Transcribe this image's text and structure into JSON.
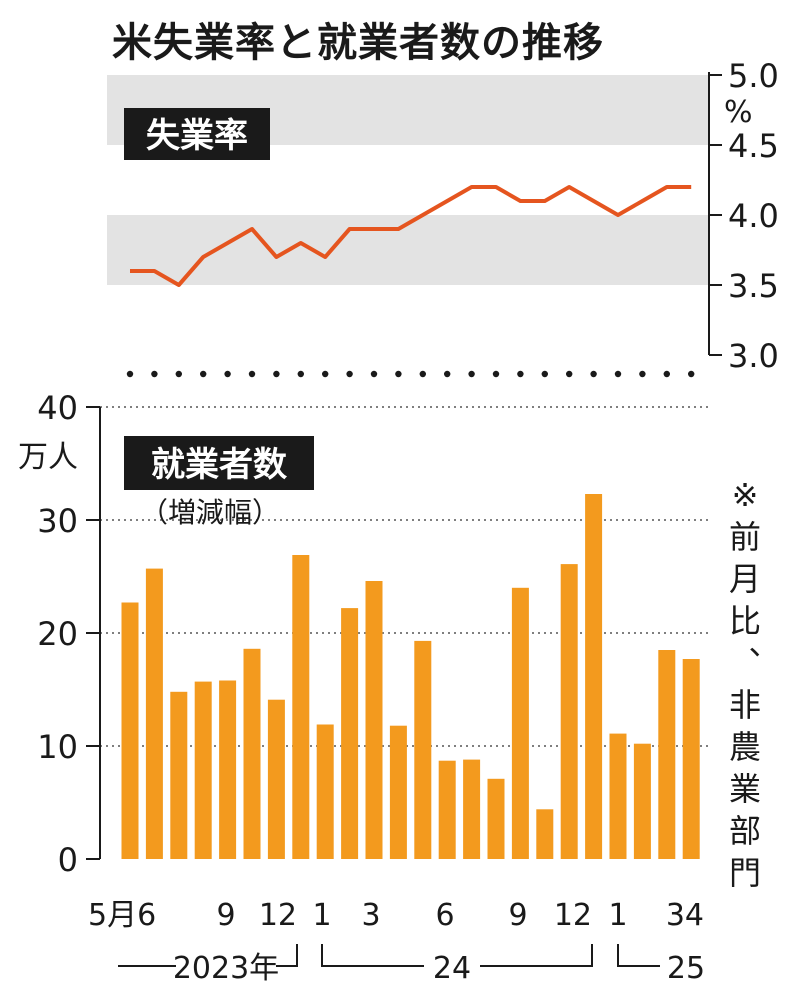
{
  "title": "米失業率と就業者数の推移",
  "colors": {
    "line": "#e5551f",
    "bar": "#f39a1e",
    "band": "#e3e3e3",
    "ink": "#1a1a1a"
  },
  "chart_data": [
    {
      "type": "line",
      "title": "失業率",
      "unit": "%",
      "axis_side": "right",
      "ylim": [
        3.0,
        5.0
      ],
      "yticks": [
        "5.0",
        "4.5",
        "4.0",
        "3.5",
        "3.0"
      ],
      "bands": [
        [
          4.5,
          5.0
        ],
        [
          3.5,
          4.0
        ]
      ],
      "x": [
        "2023-05",
        "2023-06",
        "2023-07",
        "2023-08",
        "2023-09",
        "2023-10",
        "2023-11",
        "2023-12",
        "2024-01",
        "2024-02",
        "2024-03",
        "2024-04",
        "2024-05",
        "2024-06",
        "2024-07",
        "2024-08",
        "2024-09",
        "2024-10",
        "2024-11",
        "2024-12",
        "2025-01",
        "2025-02",
        "2025-03",
        "2025-04"
      ],
      "values": [
        3.6,
        3.6,
        3.5,
        3.7,
        3.8,
        3.9,
        3.7,
        3.8,
        3.7,
        3.9,
        3.9,
        3.9,
        4.0,
        4.1,
        4.2,
        4.2,
        4.1,
        4.1,
        4.2,
        4.1,
        4.0,
        4.1,
        4.2,
        4.2
      ]
    },
    {
      "type": "bar",
      "title": "就業者数",
      "subtitle": "（増減幅）",
      "unit": "万人",
      "axis_side": "left",
      "ylim": [
        0,
        40
      ],
      "yticks": [
        "40",
        "30",
        "20",
        "10",
        "0"
      ],
      "x": [
        "2023-05",
        "2023-06",
        "2023-07",
        "2023-08",
        "2023-09",
        "2023-10",
        "2023-11",
        "2023-12",
        "2024-01",
        "2024-02",
        "2024-03",
        "2024-04",
        "2024-05",
        "2024-06",
        "2024-07",
        "2024-08",
        "2024-09",
        "2024-10",
        "2024-11",
        "2024-12",
        "2025-01",
        "2025-02",
        "2025-03",
        "2025-04"
      ],
      "values": [
        22.7,
        25.7,
        14.8,
        15.7,
        15.8,
        18.6,
        14.1,
        26.9,
        11.9,
        22.2,
        24.6,
        11.8,
        19.3,
        8.7,
        8.8,
        7.1,
        24.0,
        4.4,
        26.1,
        32.3,
        11.1,
        10.2,
        18.5,
        17.7
      ],
      "note": "※前月比、非農業部門",
      "xtick_labels": [
        "5月6",
        "9",
        "12",
        "1",
        "3",
        "6",
        "9",
        "12",
        "1",
        "34"
      ],
      "year_labels": [
        "2023年",
        "24",
        "25"
      ]
    }
  ]
}
